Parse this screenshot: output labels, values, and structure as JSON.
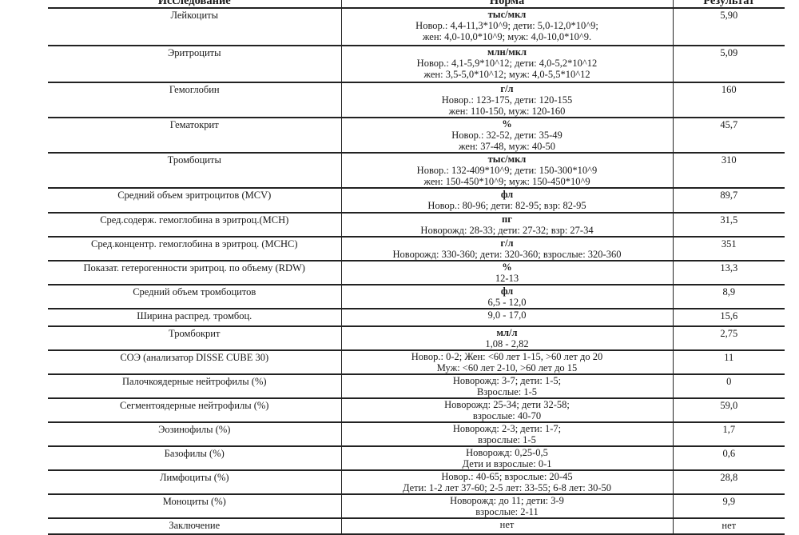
{
  "header": {
    "col_test": "Исследование",
    "col_norm": "Норма",
    "col_result": "Результат"
  },
  "rows": [
    {
      "test": "Лейкоциты",
      "unit": "тыс/мкл",
      "norm": [
        "Новор.: 4,4-11,3*10^9; дети: 5,0-12,0*10^9;",
        "жен: 4,0-10,0*10^9; муж: 4,0-10,0*10^9."
      ],
      "result": "5,90"
    },
    {
      "test": "Эритроциты",
      "unit": "млн/мкл",
      "norm": [
        "Новор.: 4,1-5,9*10^12; дети: 4,0-5,2*10^12",
        "жен: 3,5-5,0*10^12; муж: 4,0-5,5*10^12"
      ],
      "result": "5,09"
    },
    {
      "test": "Гемоглобин",
      "unit": "г/л",
      "norm": [
        "Новор.: 123-175, дети: 120-155",
        "жен: 110-150, муж: 120-160"
      ],
      "result": "160"
    },
    {
      "test": "Гематокрит",
      "unit": "%",
      "norm": [
        "Новор.: 32-52, дети: 35-49",
        "жен: 37-48, муж: 40-50"
      ],
      "result": "45,7"
    },
    {
      "test": "Тромбоциты",
      "unit": "тыс/мкл",
      "norm": [
        "Новор.: 132-409*10^9; дети: 150-300*10^9",
        "жен: 150-450*10^9; муж: 150-450*10^9"
      ],
      "result": "310"
    },
    {
      "test": "Средний объем эритроцитов (MCV)",
      "unit": "фл",
      "norm": [
        "Новор.: 80-96; дети: 82-95; взр: 82-95"
      ],
      "result": "89,7"
    },
    {
      "test": "Сред.содерж. гемоглобина в эритроц.(MCH)",
      "unit": "пг",
      "norm": [
        "Новорожд: 28-33; дети: 27-32; взр: 27-34"
      ],
      "result": "31,5"
    },
    {
      "test": "Сред.концентр. гемоглобина в эритроц. (MCHC)",
      "unit": "г/л",
      "norm": [
        "Новорожд: 330-360; дети: 320-360; взрослые: 320-360"
      ],
      "result": "351"
    },
    {
      "test": "Показат. гетерогенности эритроц. по объему (RDW)",
      "unit": "%",
      "norm": [
        "12-13"
      ],
      "result": "13,3"
    },
    {
      "test": "Средний объем тромбоцитов",
      "unit": "фл",
      "norm": [
        "6,5 - 12,0"
      ],
      "result": "8,9"
    },
    {
      "test": "Ширина распред. тромбоц.",
      "unit": "",
      "norm": [
        "9,0 - 17,0"
      ],
      "result": "15,6"
    },
    {
      "test": "Тромбокрит",
      "unit": "мл/л",
      "norm": [
        "1,08 - 2,82"
      ],
      "result": "2,75"
    },
    {
      "test": "СОЭ (анализатор DISSE CUBE 30)",
      "unit": "",
      "norm": [
        "Новор.: 0-2; Жен: <60 лет 1-15, >60 лет до 20",
        "Муж: <60 лет 2-10, >60 лет до 15"
      ],
      "result": "11"
    },
    {
      "test": "Палочкоядерные нейтрофилы (%)",
      "unit": "",
      "norm": [
        "Новорожд: 3-7; дети: 1-5;",
        "Взрослые: 1-5"
      ],
      "result": "0"
    },
    {
      "test": "Сегментоядерные нейтрофилы (%)",
      "unit": "",
      "norm": [
        "Новорожд: 25-34; дети 32-58;",
        "взрослые: 40-70"
      ],
      "result": "59,0"
    },
    {
      "test": "Эозинофилы (%)",
      "unit": "",
      "norm": [
        "Новорожд: 2-3; дети: 1-7;",
        "взрослые: 1-5"
      ],
      "result": "1,7"
    },
    {
      "test": "Базофилы (%)",
      "unit": "",
      "norm": [
        "Новорожд: 0,25-0,5",
        "Дети и взрослые: 0-1"
      ],
      "result": "0,6"
    },
    {
      "test": "Лимфоциты (%)",
      "unit": "",
      "norm": [
        "Новор.: 40-65; взрослые: 20-45",
        "Дети: 1-2 лет 37-60; 2-5 лет: 33-55; 6-8 лет: 30-50"
      ],
      "result": "28,8"
    },
    {
      "test": "Моноциты (%)",
      "unit": "",
      "norm": [
        "Новорожд: до 11; дети: 3-9",
        "взрослые: 2-11"
      ],
      "result": "9,9"
    },
    {
      "test": "Заключение",
      "unit": "",
      "norm": [
        "нет"
      ],
      "result": "нет"
    }
  ]
}
